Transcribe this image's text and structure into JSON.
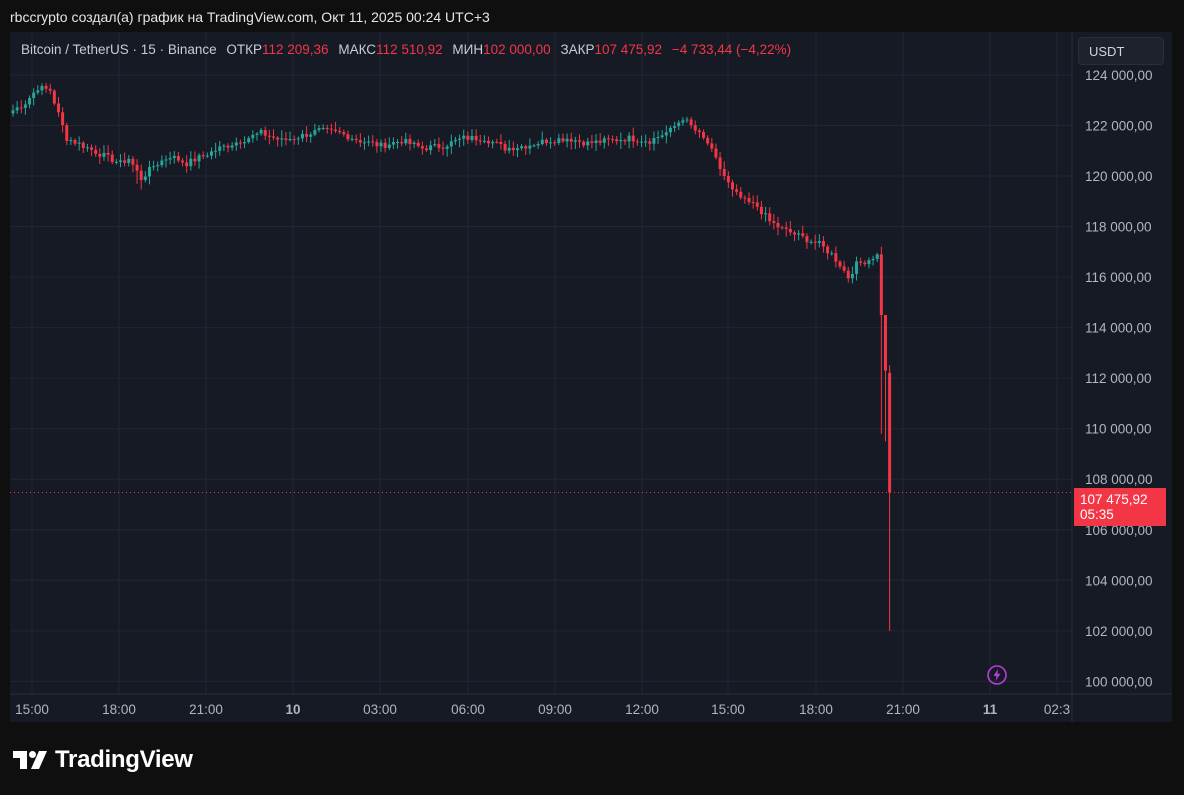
{
  "caption": "rbccrypto создал(а) график на TradingView.com, Окт 11, 2025 00:24 UTC+3",
  "legend": {
    "symbol": "Bitcoin / TetherUS · 15 · Binance",
    "open_label": "ОТКР",
    "open_value": "112 209,36",
    "high_label": "МАКС",
    "high_value": "112 510,92",
    "low_label": "МИН",
    "low_value": "102 000,00",
    "close_label": "ЗАКР",
    "close_value": "107 475,92",
    "change": "−4 733,44 (−4,22%)"
  },
  "currency_button": "USDT",
  "last_price": {
    "value": "107 475,92",
    "countdown": "05:35"
  },
  "brand": "TradingView",
  "colors": {
    "up": "#26a69a",
    "down": "#f23645",
    "grid": "#232632",
    "text": "#b2b5be",
    "background": "#161a25"
  },
  "chart_data": {
    "type": "candlestick",
    "y_tick_labels": [
      "124 000,00",
      "122 000,00",
      "120 000,00",
      "118 000,00",
      "116 000,00",
      "114 000,00",
      "112 000,00",
      "110 000,00",
      "108 000,00",
      "106 000,00",
      "104 000,00",
      "102 000,00",
      "100 000,00"
    ],
    "y_ticks": [
      124000,
      122000,
      120000,
      118000,
      116000,
      114000,
      112000,
      110000,
      108000,
      106000,
      104000,
      102000,
      100000
    ],
    "ylim": [
      99500,
      125700
    ],
    "x_tick_labels": [
      "15:00",
      "18:00",
      "21:00",
      "10",
      "03:00",
      "06:00",
      "09:00",
      "12:00",
      "15:00",
      "18:00",
      "21:00",
      "11",
      "02:3"
    ],
    "x_tick_bold": [
      false,
      false,
      false,
      true,
      false,
      false,
      false,
      false,
      false,
      false,
      false,
      true,
      false
    ],
    "anchors": [
      [
        0,
        122600
      ],
      [
        3,
        122900
      ],
      [
        6,
        123500
      ],
      [
        9,
        123400
      ],
      [
        13,
        121500
      ],
      [
        17,
        121200
      ],
      [
        22,
        120800
      ],
      [
        26,
        120500
      ],
      [
        28,
        120700
      ],
      [
        31,
        119900
      ],
      [
        34,
        120400
      ],
      [
        38,
        120800
      ],
      [
        42,
        120500
      ],
      [
        46,
        120800
      ],
      [
        50,
        121100
      ],
      [
        55,
        121400
      ],
      [
        60,
        121700
      ],
      [
        65,
        121400
      ],
      [
        70,
        121600
      ],
      [
        74,
        121800
      ],
      [
        79,
        121700
      ],
      [
        84,
        121400
      ],
      [
        89,
        121200
      ],
      [
        94,
        121400
      ],
      [
        99,
        121100
      ],
      [
        104,
        121200
      ],
      [
        109,
        121500
      ],
      [
        114,
        121500
      ],
      [
        119,
        121100
      ],
      [
        124,
        121200
      ],
      [
        129,
        121400
      ],
      [
        134,
        121500
      ],
      [
        139,
        121300
      ],
      [
        144,
        121400
      ],
      [
        149,
        121500
      ],
      [
        154,
        121400
      ],
      [
        159,
        121800
      ],
      [
        162,
        122300
      ],
      [
        165,
        121800
      ],
      [
        168,
        121300
      ],
      [
        171,
        120300
      ],
      [
        174,
        119400
      ],
      [
        177,
        119000
      ],
      [
        180,
        118800
      ],
      [
        183,
        118200
      ],
      [
        186,
        117900
      ],
      [
        189,
        117700
      ],
      [
        192,
        117500
      ],
      [
        195,
        117300
      ],
      [
        198,
        116900
      ],
      [
        200,
        116500
      ],
      [
        202,
        116000
      ],
      [
        204,
        116500
      ],
      [
        207,
        116700
      ],
      [
        209,
        116900
      ],
      [
        210,
        114500
      ],
      [
        211,
        112300
      ],
      [
        212,
        107476
      ]
    ],
    "final_candle": {
      "open": 112209.36,
      "high": 112510.92,
      "low": 102000.0,
      "close": 107475.92
    }
  }
}
